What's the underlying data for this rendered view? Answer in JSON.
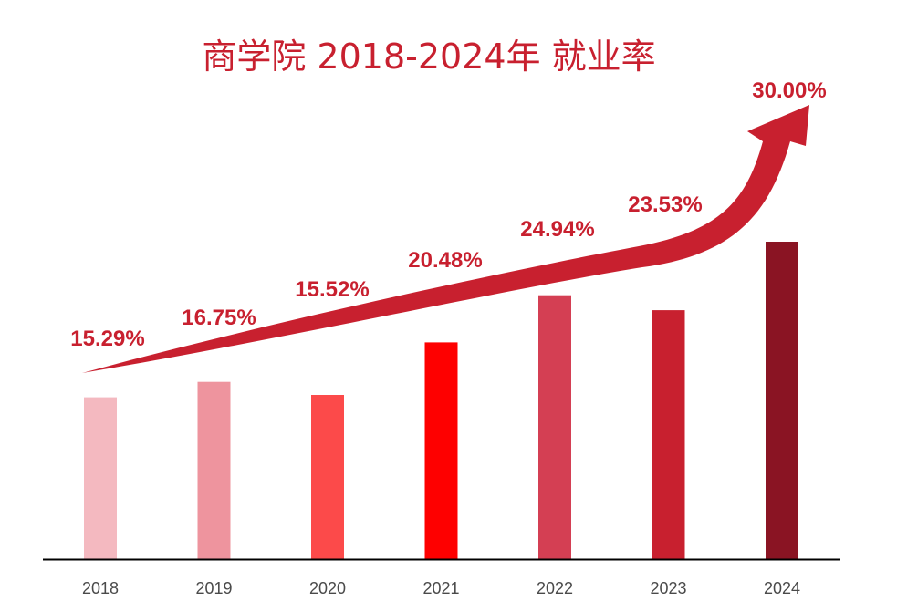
{
  "chart_data": {
    "type": "bar",
    "title": "商学院 2018-2024年 就业率",
    "categories": [
      "2018",
      "2019",
      "2020",
      "2021",
      "2022",
      "2023",
      "2024"
    ],
    "values": [
      15.29,
      16.75,
      15.52,
      20.48,
      24.94,
      23.53,
      30.0
    ],
    "value_labels": [
      "15.29%",
      "16.75%",
      "15.52%",
      "20.48%",
      "24.94%",
      "23.53%",
      "30.00%"
    ],
    "bar_colors": [
      "#f4b9c0",
      "#ee949e",
      "#fc4a4a",
      "#fe0000",
      "#d43f53",
      "#c8202f",
      "#8a1423"
    ],
    "trend_arrow_color": "#c8202f",
    "ylim": [
      0,
      30
    ],
    "xlabel": "",
    "ylabel": "",
    "grid": false
  }
}
